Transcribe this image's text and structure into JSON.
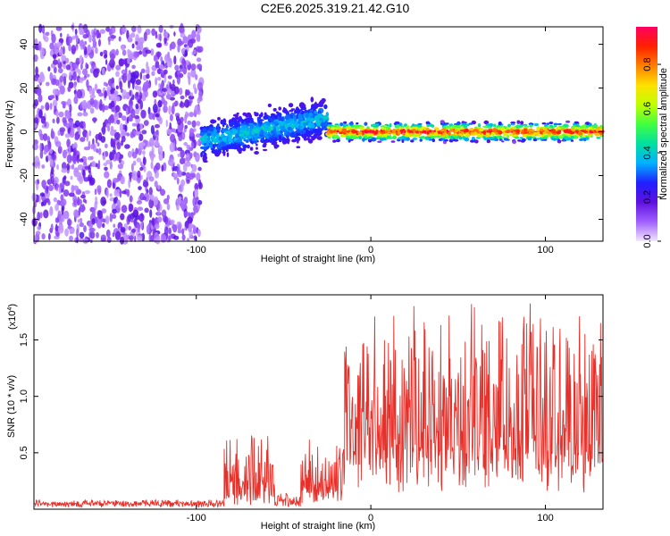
{
  "figure_title": "C2E6.2025.319.21.42.G10",
  "chart_data": [
    {
      "type": "heatmap",
      "title": "C2E6.2025.319.21.42.G10",
      "xlabel": "Height of straight line (km)",
      "ylabel": "Frequency (Hz)",
      "xlim": [
        -193,
        133
      ],
      "ylim": [
        -50,
        48
      ],
      "x_ticks": [
        -100,
        0,
        100
      ],
      "y_ticks": [
        40,
        20,
        0,
        -20,
        -40
      ],
      "colorbar": {
        "label": "Normalized spectral amplitude",
        "range": [
          0.0,
          0.97
        ],
        "ticks": [
          0.0,
          0.2,
          0.4,
          0.6,
          0.8
        ],
        "colors": [
          "#f2e6ff",
          "#a060ff",
          "#6010e0",
          "#2020ff",
          "#00b0ff",
          "#00e0a0",
          "#40ff40",
          "#c0ff00",
          "#ffe000",
          "#ff8000",
          "#ff2000",
          "#ff0060"
        ]
      },
      "regions": [
        {
          "name": "noise",
          "x_range": [
            -193,
            -97
          ],
          "freq_spread_hz": [
            -50,
            48
          ],
          "amplitude": [
            0.05,
            0.2
          ]
        },
        {
          "name": "transition",
          "x_range": [
            -97,
            -25
          ],
          "center_hz": [
            -4,
            6
          ],
          "spread_hz": 8,
          "amplitude": [
            0.2,
            0.45
          ]
        },
        {
          "name": "signal",
          "x_range": [
            -25,
            133
          ],
          "center_hz": 0,
          "spread_hz": 3,
          "amplitude": [
            0.5,
            0.97
          ]
        }
      ]
    },
    {
      "type": "line",
      "xlabel": "Height of straight line (km)",
      "ylabel": "SNR (10 * v/v)",
      "y_scale_label": "(x10",
      "y_scale_exponent": "4",
      "xlim": [
        -193,
        133
      ],
      "ylim": [
        0,
        1.9
      ],
      "x_ticks": [
        -100,
        0,
        100
      ],
      "y_ticks": [
        0.5,
        1.0,
        1.5
      ],
      "line_color": "#e8302a",
      "series": [
        {
          "name": "SNR",
          "segments": [
            {
              "x_range": [
                -193,
                -84
              ],
              "baseline": 0.05,
              "amplitude": 0.03
            },
            {
              "x_range": [
                -84,
                -55
              ],
              "baseline": 0.1,
              "amplitude": 0.55
            },
            {
              "x_range": [
                -55,
                -40
              ],
              "baseline": 0.05,
              "amplitude": 0.1
            },
            {
              "x_range": [
                -40,
                -15
              ],
              "baseline": 0.15,
              "amplitude": 0.45
            },
            {
              "x_range": [
                -15,
                0
              ],
              "baseline": 0.6,
              "amplitude": 0.85
            },
            {
              "x_range": [
                0,
                133
              ],
              "baseline": 0.45,
              "amplitude": 1.35
            }
          ]
        }
      ]
    }
  ]
}
